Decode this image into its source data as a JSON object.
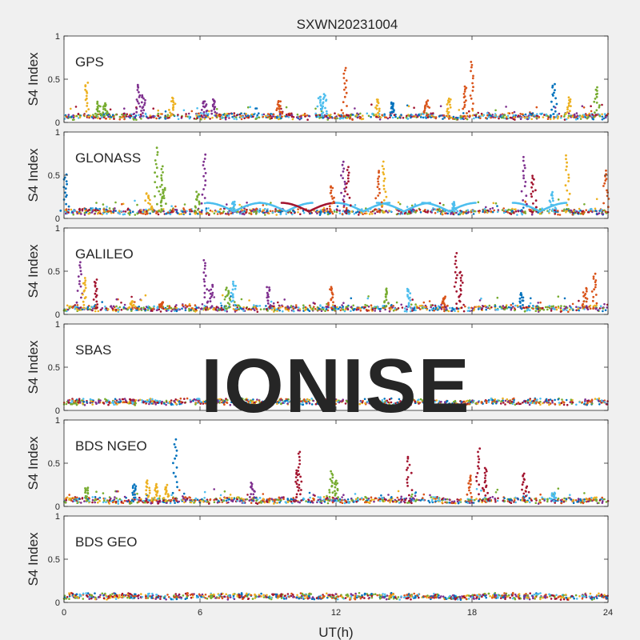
{
  "title": "SXWN20231004",
  "watermark": "IONISE",
  "colors": [
    "#0072bd",
    "#d95319",
    "#edb120",
    "#7e2f8e",
    "#77ac30",
    "#4dbeee",
    "#a2142f"
  ],
  "chart_data": {
    "type": "scatter",
    "title": "SXWN20231004",
    "xlabel": "UT(h)",
    "xlim": [
      0,
      24
    ],
    "xticks": [
      "0",
      "6",
      "12",
      "18",
      "24"
    ],
    "ylim": [
      0,
      1
    ],
    "yticks": [
      "0",
      "0.5",
      "1"
    ],
    "panels": [
      {
        "name": "GPS",
        "ylabel": "S4 Index",
        "baseline": 0.07,
        "spikes": [
          {
            "x": 1.0,
            "y": 0.46,
            "c": 2
          },
          {
            "x": 1.5,
            "y": 0.23,
            "c": 4
          },
          {
            "x": 1.8,
            "y": 0.22,
            "c": 4
          },
          {
            "x": 3.3,
            "y": 0.44,
            "c": 3
          },
          {
            "x": 3.5,
            "y": 0.32,
            "c": 3
          },
          {
            "x": 4.8,
            "y": 0.28,
            "c": 2
          },
          {
            "x": 6.2,
            "y": 0.25,
            "c": 3
          },
          {
            "x": 6.6,
            "y": 0.27,
            "c": 3
          },
          {
            "x": 9.5,
            "y": 0.25,
            "c": 1
          },
          {
            "x": 11.3,
            "y": 0.3,
            "c": 5
          },
          {
            "x": 11.5,
            "y": 0.33,
            "c": 5
          },
          {
            "x": 12.4,
            "y": 0.63,
            "c": 1
          },
          {
            "x": 13.8,
            "y": 0.27,
            "c": 2
          },
          {
            "x": 14.5,
            "y": 0.23,
            "c": 0
          },
          {
            "x": 16.0,
            "y": 0.25,
            "c": 1
          },
          {
            "x": 17.0,
            "y": 0.28,
            "c": 2
          },
          {
            "x": 18.0,
            "y": 0.71,
            "c": 1
          },
          {
            "x": 17.7,
            "y": 0.42,
            "c": 1
          },
          {
            "x": 21.6,
            "y": 0.45,
            "c": 0
          },
          {
            "x": 22.3,
            "y": 0.28,
            "c": 2
          },
          {
            "x": 23.5,
            "y": 0.4,
            "c": 4
          }
        ]
      },
      {
        "name": "GLONASS",
        "ylabel": "S4 Index",
        "baseline": 0.08,
        "spikes": [
          {
            "x": 0.05,
            "y": 0.5,
            "c": 0
          },
          {
            "x": 3.7,
            "y": 0.3,
            "c": 2
          },
          {
            "x": 4.1,
            "y": 0.82,
            "c": 4
          },
          {
            "x": 4.3,
            "y": 0.6,
            "c": 4
          },
          {
            "x": 4.4,
            "y": 0.35,
            "c": 4
          },
          {
            "x": 5.9,
            "y": 0.3,
            "c": 4
          },
          {
            "x": 6.2,
            "y": 0.74,
            "c": 3
          },
          {
            "x": 7.5,
            "y": 0.2,
            "c": 5
          },
          {
            "x": 11.8,
            "y": 0.38,
            "c": 1
          },
          {
            "x": 12.3,
            "y": 0.65,
            "c": 3
          },
          {
            "x": 12.5,
            "y": 0.6,
            "c": 6
          },
          {
            "x": 13.9,
            "y": 0.55,
            "c": 1
          },
          {
            "x": 14.1,
            "y": 0.65,
            "c": 2
          },
          {
            "x": 17.2,
            "y": 0.18,
            "c": 5
          },
          {
            "x": 20.3,
            "y": 0.7,
            "c": 3
          },
          {
            "x": 20.7,
            "y": 0.5,
            "c": 6
          },
          {
            "x": 21.5,
            "y": 0.3,
            "c": 5
          },
          {
            "x": 22.2,
            "y": 0.72,
            "c": 2
          },
          {
            "x": 23.9,
            "y": 0.55,
            "c": 1
          }
        ]
      },
      {
        "name": "GALILEO",
        "ylabel": "S4 Index",
        "baseline": 0.07,
        "spikes": [
          {
            "x": 0.7,
            "y": 0.6,
            "c": 3
          },
          {
            "x": 0.9,
            "y": 0.42,
            "c": 2
          },
          {
            "x": 1.4,
            "y": 0.4,
            "c": 6
          },
          {
            "x": 3.0,
            "y": 0.15,
            "c": 2
          },
          {
            "x": 4.3,
            "y": 0.15,
            "c": 1
          },
          {
            "x": 6.2,
            "y": 0.63,
            "c": 3
          },
          {
            "x": 6.5,
            "y": 0.35,
            "c": 3
          },
          {
            "x": 7.2,
            "y": 0.3,
            "c": 4
          },
          {
            "x": 7.5,
            "y": 0.38,
            "c": 5
          },
          {
            "x": 9.0,
            "y": 0.32,
            "c": 3
          },
          {
            "x": 11.8,
            "y": 0.32,
            "c": 1
          },
          {
            "x": 14.2,
            "y": 0.3,
            "c": 4
          },
          {
            "x": 15.2,
            "y": 0.3,
            "c": 5
          },
          {
            "x": 16.8,
            "y": 0.2,
            "c": 1
          },
          {
            "x": 17.3,
            "y": 0.7,
            "c": 6
          },
          {
            "x": 17.5,
            "y": 0.5,
            "c": 6
          },
          {
            "x": 20.2,
            "y": 0.25,
            "c": 0
          },
          {
            "x": 23.4,
            "y": 0.47,
            "c": 1
          },
          {
            "x": 23.0,
            "y": 0.3,
            "c": 1
          }
        ]
      },
      {
        "name": "SBAS",
        "ylabel": "S4 Index",
        "baseline": 0.1,
        "spikes": []
      },
      {
        "name": "BDS NGEO",
        "ylabel": "S4 Index",
        "baseline": 0.07,
        "spikes": [
          {
            "x": 1.0,
            "y": 0.22,
            "c": 4
          },
          {
            "x": 3.1,
            "y": 0.25,
            "c": 0
          },
          {
            "x": 3.7,
            "y": 0.3,
            "c": 2
          },
          {
            "x": 4.1,
            "y": 0.25,
            "c": 2
          },
          {
            "x": 4.5,
            "y": 0.24,
            "c": 2
          },
          {
            "x": 4.9,
            "y": 0.77,
            "c": 0
          },
          {
            "x": 8.3,
            "y": 0.27,
            "c": 3
          },
          {
            "x": 10.4,
            "y": 0.64,
            "c": 6
          },
          {
            "x": 10.3,
            "y": 0.42,
            "c": 6
          },
          {
            "x": 11.8,
            "y": 0.4,
            "c": 4
          },
          {
            "x": 12.0,
            "y": 0.3,
            "c": 4
          },
          {
            "x": 15.2,
            "y": 0.58,
            "c": 6
          },
          {
            "x": 17.9,
            "y": 0.36,
            "c": 1
          },
          {
            "x": 18.3,
            "y": 0.66,
            "c": 6
          },
          {
            "x": 18.6,
            "y": 0.45,
            "c": 6
          },
          {
            "x": 20.3,
            "y": 0.38,
            "c": 6
          },
          {
            "x": 21.6,
            "y": 0.15,
            "c": 5
          }
        ]
      },
      {
        "name": "BDS GEO",
        "ylabel": "S4 Index",
        "baseline": 0.07,
        "spikes": []
      }
    ]
  }
}
